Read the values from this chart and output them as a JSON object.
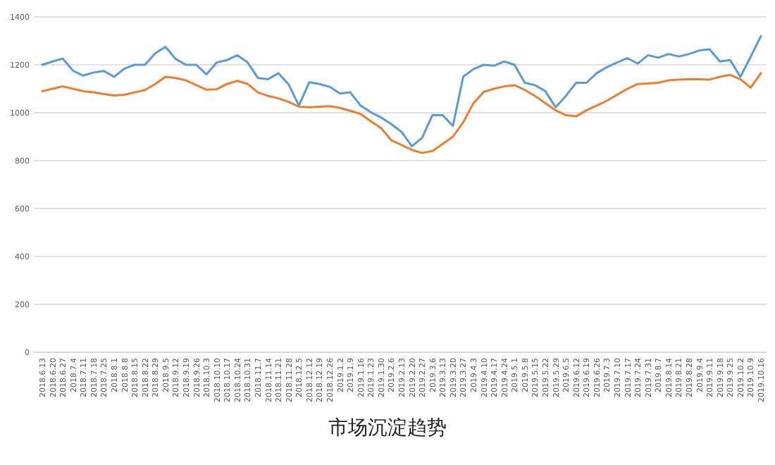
{
  "chart_data": {
    "type": "line",
    "title": "市场沉淀趋势",
    "categories": [
      "2018.6.13",
      "2018.6.20",
      "2018.6.27",
      "2018.7.4",
      "2018.7.11",
      "2018.7.18",
      "2018.7.25",
      "2018.8.1",
      "2018.8.8",
      "2018.8.15",
      "2018.8.22",
      "2018.8.29",
      "2018.9.5",
      "2018.9.12",
      "2018.9.19",
      "2018.9.26",
      "2018.10.3",
      "2018.10.10",
      "2018.10.17",
      "2018.10.24",
      "2018.10.31",
      "2018.11.7",
      "2018.11.14",
      "2018.11.21",
      "2018.11.28",
      "2018.12.5",
      "2018.12.12",
      "2018.12.19",
      "2018.12.26",
      "2019.1.2",
      "2019.1.9",
      "2019.1.16",
      "2019.1.23",
      "2019.1.30",
      "2019.2.6",
      "2019.2.13",
      "2019.2.20",
      "2019.2.27",
      "2019.3.6",
      "2019.3.13",
      "2019.3.20",
      "2019.3.27",
      "2019.4.3",
      "2019.4.10",
      "2019.4.17",
      "2019.4.24",
      "2019.5.1",
      "2019.5.8",
      "2019.5.15",
      "2019.5.22",
      "2019.5.29",
      "2019.6.5",
      "2019.6.12",
      "2019.6.19",
      "2019.6.26",
      "2019.7.3",
      "2019.7.10",
      "2019.7.17",
      "2019.7.24",
      "2019.7.31",
      "2019.8.7",
      "2019.8.14",
      "2019.8.21",
      "2019.8.28",
      "2019.9.4",
      "2019.9.11",
      "2019.9.18",
      "2019.9.25",
      "2019.10.2",
      "2019.10.9",
      "2019.10.16"
    ],
    "series": [
      {
        "color": "#5b9bd5",
        "values": [
          1200,
          1214,
          1226,
          1175,
          1155,
          1168,
          1174,
          1150,
          1184,
          1200,
          1200,
          1248,
          1275,
          1224,
          1200,
          1200,
          1160,
          1210,
          1220,
          1240,
          1210,
          1145,
          1140,
          1165,
          1118,
          1030,
          1127,
          1120,
          1108,
          1080,
          1085,
          1030,
          1002,
          980,
          952,
          920,
          860,
          895,
          990,
          990,
          945,
          1150,
          1182,
          1200,
          1196,
          1214,
          1200,
          1125,
          1115,
          1090,
          1023,
          1070,
          1125,
          1125,
          1165,
          1190,
          1210,
          1228,
          1205,
          1240,
          1230,
          1245,
          1235,
          1245,
          1260,
          1265,
          1214,
          1220,
          1150,
          1233,
          1320
        ]
      },
      {
        "color": "#ed7d31",
        "values": [
          1090,
          1100,
          1110,
          1100,
          1090,
          1085,
          1078,
          1072,
          1075,
          1085,
          1095,
          1120,
          1150,
          1145,
          1135,
          1115,
          1096,
          1098,
          1120,
          1133,
          1120,
          1085,
          1070,
          1060,
          1045,
          1025,
          1023,
          1025,
          1027,
          1020,
          1008,
          995,
          965,
          935,
          885,
          865,
          845,
          832,
          840,
          870,
          900,
          960,
          1040,
          1087,
          1100,
          1110,
          1115,
          1095,
          1070,
          1040,
          1010,
          990,
          985,
          1010,
          1030,
          1050,
          1075,
          1100,
          1120,
          1122,
          1125,
          1135,
          1138,
          1140,
          1140,
          1138,
          1150,
          1158,
          1140,
          1105,
          1165
        ]
      }
    ],
    "ylim": [
      0,
      1400
    ],
    "yticks": [
      0,
      200,
      400,
      600,
      800,
      1000,
      1200,
      1400
    ],
    "grid": "y",
    "marker": "none",
    "line_style": "solid"
  }
}
